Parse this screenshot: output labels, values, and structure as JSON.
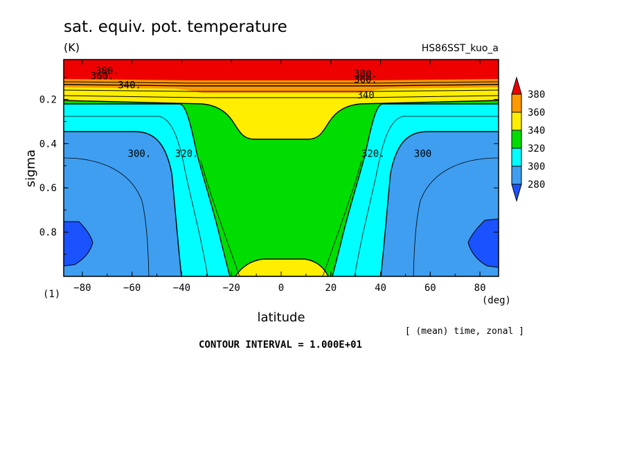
{
  "chart_data": {
    "type": "heatmap",
    "title": "sat. equiv. pot. temperature",
    "units": "(K)",
    "experiment": "HS86SST_kuo_a",
    "xlabel": "latitude",
    "ylabel": "sigma",
    "x_unit": "(deg)",
    "y_unit": "(1)",
    "xlim": [
      -87.5,
      87.5
    ],
    "ylim": [
      1.0,
      0.02
    ],
    "x_ticks": [
      -80,
      -60,
      -40,
      -20,
      0,
      20,
      40,
      60,
      80
    ],
    "x_tick_labels": [
      "−80",
      "−60",
      "−40",
      "−20",
      "0",
      "20",
      "40",
      "60",
      "80"
    ],
    "y_ticks": [
      0.2,
      0.4,
      0.6,
      0.8
    ],
    "y_tick_labels": [
      "0.2",
      "0.4",
      "0.6",
      "0.8"
    ],
    "averaging_note": "[ (mean) time, zonal ]",
    "contour_interval_text": "CONTOUR INTERVAL = 1.000E+01",
    "colorbar": {
      "labels": [
        "380",
        "360",
        "340",
        "320",
        "300",
        "280"
      ],
      "levels": [
        280,
        300,
        320,
        340,
        360,
        380
      ],
      "colors": [
        "#1a52ff",
        "#3f9ef0",
        "#00ffff",
        "#00dd00",
        "#ffee00",
        "#ff9900",
        "#ee0000"
      ]
    },
    "contour_labels": [
      {
        "text": "380.",
        "x": -70,
        "y": 0.085
      },
      {
        "text": "360.",
        "x": -72,
        "y": 0.11
      },
      {
        "text": "340.",
        "x": -61,
        "y": 0.15
      },
      {
        "text": "300.",
        "x": -57,
        "y": 0.46
      },
      {
        "text": "320.",
        "x": -38,
        "y": 0.46
      },
      {
        "text": "380.",
        "x": 34,
        "y": 0.1
      },
      {
        "text": "360.",
        "x": 34,
        "y": 0.125
      },
      {
        "text": "340",
        "x": 34,
        "y": 0.195
      },
      {
        "text": "320.",
        "x": 37,
        "y": 0.46
      },
      {
        "text": "300",
        "x": 57,
        "y": 0.46
      }
    ]
  }
}
